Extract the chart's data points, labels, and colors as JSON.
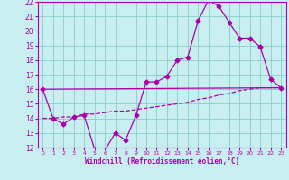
{
  "xlabel": "Windchill (Refroidissement éolien,°C)",
  "xlim": [
    -0.5,
    23.5
  ],
  "ylim": [
    12,
    22
  ],
  "yticks": [
    12,
    13,
    14,
    15,
    16,
    17,
    18,
    19,
    20,
    21,
    22
  ],
  "xticks": [
    0,
    1,
    2,
    3,
    4,
    5,
    6,
    7,
    8,
    9,
    10,
    11,
    12,
    13,
    14,
    15,
    16,
    17,
    18,
    19,
    20,
    21,
    22,
    23
  ],
  "bg_color": "#c8eef0",
  "line_color": "#aa00aa",
  "grid_color": "#88cccc",
  "line1_x": [
    0,
    1,
    2,
    3,
    4,
    5,
    6,
    7,
    8,
    9,
    10,
    11,
    12,
    13,
    14,
    15,
    16,
    17,
    18,
    19,
    20,
    21,
    22,
    23
  ],
  "line1_y": [
    16.0,
    14.0,
    13.6,
    14.1,
    14.2,
    11.9,
    11.8,
    13.0,
    12.5,
    14.2,
    16.5,
    16.5,
    16.9,
    18.0,
    18.2,
    20.7,
    22.1,
    21.7,
    20.6,
    19.5,
    19.5,
    18.9,
    16.7,
    16.1
  ],
  "line2_x": [
    0,
    1,
    2,
    3,
    4,
    5,
    6,
    7,
    8,
    9,
    10,
    11,
    12,
    13,
    14,
    15,
    16,
    17,
    18,
    19,
    20,
    21,
    22,
    23
  ],
  "line2_y": [
    14.0,
    14.0,
    14.1,
    14.1,
    14.3,
    14.3,
    14.4,
    14.5,
    14.5,
    14.6,
    14.7,
    14.8,
    14.9,
    15.0,
    15.1,
    15.3,
    15.4,
    15.6,
    15.7,
    15.9,
    16.0,
    16.1,
    16.1,
    16.1
  ],
  "line3_x": [
    0,
    23
  ],
  "line3_y": [
    16.0,
    16.1
  ]
}
